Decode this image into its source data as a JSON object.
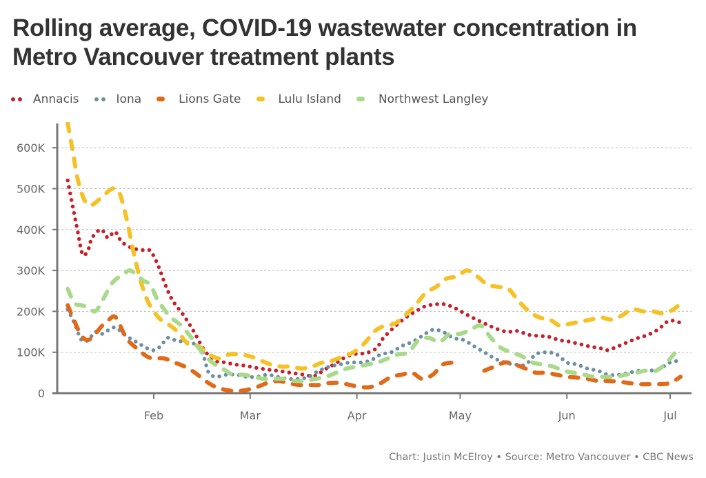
{
  "title": "Rolling average, COVID-19 wastewater concentration in Metro Vancouver treatment plants",
  "footer": "Chart: Justin McElroy • Source: Metro Vancouver • CBC News",
  "chart_data": {
    "type": "line",
    "title": "Rolling average, COVID-19 wastewater concentration in Metro Vancouver treatment plants",
    "xlabel": "",
    "ylabel": "",
    "x_unit": "day of year",
    "xlim": [
      4,
      188
    ],
    "ylim": [
      0,
      660000
    ],
    "grid": true,
    "legend_position": "top-left",
    "x_ticks": [
      {
        "label": "Feb",
        "day": 32
      },
      {
        "label": "Mar",
        "day": 60
      },
      {
        "label": "Apr",
        "day": 91
      },
      {
        "label": "May",
        "day": 121
      },
      {
        "label": "Jun",
        "day": 152
      },
      {
        "label": "Jul",
        "day": 182
      }
    ],
    "y_ticks": [
      {
        "label": "0",
        "value": 0
      },
      {
        "label": "100K",
        "value": 100000
      },
      {
        "label": "200K",
        "value": 200000
      },
      {
        "label": "300K",
        "value": 300000
      },
      {
        "label": "400K",
        "value": 400000
      },
      {
        "label": "500K",
        "value": 500000
      },
      {
        "label": "600K",
        "value": 600000
      }
    ],
    "series": [
      {
        "name": "Annacis",
        "color": "#c8202a",
        "style": "dotted",
        "x": [
          7,
          8.5,
          9.7,
          11.3,
          12.9,
          14.1,
          16.7,
          18.7,
          20.7,
          22.7,
          25.7,
          28.7,
          30.7,
          32,
          33.6,
          35.6,
          37.6,
          40.7,
          43.7,
          46.7,
          49.7,
          52.7,
          55.7,
          58.7,
          61.7,
          64.7,
          67.7,
          71.7,
          75.7,
          78.7,
          81.7,
          84.7,
          87.7,
          90.7,
          93.7,
          96.7,
          98.7,
          101.7,
          104.7,
          107.7,
          110.7,
          113.7,
          116.7,
          119.7,
          122.7,
          125.7,
          128.7,
          131.7,
          134.7,
          137.7,
          140.7,
          143.7,
          146.7,
          149.7,
          152.7,
          155.7,
          158.7,
          161.7,
          163.7,
          166.7,
          169.7,
          172.7,
          175.7,
          178.7,
          181.7,
          184.7
        ],
        "values": [
          520000,
          455000,
          405000,
          340000,
          350000,
          380000,
          400000,
          380000,
          395000,
          370000,
          355000,
          350000,
          350000,
          335000,
          305000,
          260000,
          225000,
          190000,
          150000,
          105000,
          80000,
          75000,
          70000,
          67000,
          62000,
          58000,
          55000,
          50000,
          45000,
          42000,
          58000,
          72000,
          88000,
          96000,
          98000,
          110000,
          135000,
          160000,
          182000,
          198000,
          212000,
          217000,
          217000,
          207000,
          193000,
          180000,
          168000,
          157000,
          150000,
          152000,
          143000,
          140000,
          138000,
          130000,
          126000,
          120000,
          114000,
          110000,
          105000,
          114000,
          125000,
          135000,
          143000,
          157000,
          177000,
          173000
        ]
      },
      {
        "name": "Iona",
        "color": "#6d8fa5",
        "style": "dotted",
        "x": [
          7,
          9,
          11,
          13,
          15,
          17,
          19,
          21,
          24,
          27,
          30,
          32,
          34,
          36,
          38,
          41,
          44,
          46,
          47,
          48,
          50,
          53,
          56,
          59,
          62,
          65,
          68,
          71,
          74,
          77,
          80,
          83,
          86,
          89,
          92,
          95,
          98,
          101,
          104,
          107,
          110,
          113,
          116,
          119,
          122,
          125,
          128,
          131,
          134,
          137,
          140,
          143,
          146,
          149,
          152,
          155,
          158,
          161,
          164,
          167,
          170,
          173,
          176,
          179,
          182,
          185
        ],
        "values": [
          205000,
          170000,
          130000,
          130000,
          150000,
          145000,
          155000,
          160000,
          140000,
          125000,
          110000,
          105000,
          115000,
          135000,
          130000,
          125000,
          120000,
          105000,
          75000,
          50000,
          40000,
          45000,
          45000,
          40000,
          40000,
          45000,
          40000,
          35000,
          35000,
          40000,
          55000,
          65000,
          70000,
          75000,
          75000,
          80000,
          95000,
          100000,
          115000,
          125000,
          140000,
          155000,
          150000,
          135000,
          130000,
          115000,
          100000,
          85000,
          75000,
          70000,
          70000,
          95000,
          100000,
          95000,
          75000,
          70000,
          60000,
          55000,
          45000,
          45000,
          50000,
          55000,
          55000,
          60000,
          75000,
          80000
        ]
      },
      {
        "name": "Lions Gate",
        "color": "#e06a1a",
        "style": "dashed",
        "x": [
          7,
          9,
          11,
          13,
          15,
          17,
          19,
          21,
          24,
          27,
          30,
          32,
          35,
          38,
          41,
          44,
          47,
          50,
          53,
          56,
          59,
          62,
          65,
          68,
          71,
          74,
          77,
          80,
          83,
          86,
          89,
          92,
          95,
          98,
          101,
          104,
          107,
          110,
          113,
          116,
          119,
          null,
          128,
          131,
          134,
          137,
          140,
          143,
          146,
          149,
          152,
          155,
          158,
          161,
          164,
          167,
          170,
          173,
          176,
          179,
          182,
          185
        ],
        "values": [
          215000,
          175000,
          140000,
          130000,
          145000,
          165000,
          180000,
          185000,
          135000,
          110000,
          90000,
          85000,
          85000,
          75000,
          65000,
          50000,
          30000,
          15000,
          8000,
          5000,
          8000,
          15000,
          25000,
          30000,
          25000,
          20000,
          20000,
          20000,
          25000,
          25000,
          20000,
          15000,
          15000,
          25000,
          40000,
          45000,
          50000,
          35000,
          45000,
          70000,
          75000,
          null,
          55000,
          65000,
          75000,
          70000,
          60000,
          50000,
          50000,
          45000,
          40000,
          38000,
          35000,
          30000,
          30000,
          28000,
          25000,
          22000,
          22000,
          22000,
          25000,
          40000
        ]
      },
      {
        "name": "Lulu Island",
        "color": "#f5c125",
        "style": "dashed",
        "x": [
          7,
          8.5,
          10,
          12,
          14,
          17,
          20,
          22,
          24,
          26,
          28,
          30,
          32,
          34,
          36,
          39,
          42,
          45,
          48,
          51,
          54,
          57,
          60,
          63,
          66,
          69,
          72,
          75,
          78,
          81,
          84,
          87,
          90,
          93,
          96,
          99,
          102,
          105,
          108,
          111,
          114,
          117,
          120,
          123,
          126,
          129,
          132,
          135,
          138,
          141,
          144,
          147,
          150,
          153,
          156,
          159,
          162,
          165,
          168,
          171,
          174,
          177,
          180,
          183,
          185
        ],
        "values": [
          660000,
          590000,
          520000,
          470000,
          460000,
          480000,
          500000,
          490000,
          430000,
          350000,
          280000,
          230000,
          200000,
          180000,
          170000,
          150000,
          120000,
          115000,
          95000,
          85000,
          95000,
          95000,
          90000,
          80000,
          70000,
          65000,
          65000,
          60000,
          65000,
          75000,
          80000,
          90000,
          100000,
          120000,
          150000,
          165000,
          170000,
          190000,
          215000,
          245000,
          260000,
          280000,
          285000,
          300000,
          285000,
          265000,
          260000,
          255000,
          225000,
          200000,
          185000,
          180000,
          165000,
          170000,
          175000,
          180000,
          185000,
          180000,
          190000,
          205000,
          200000,
          200000,
          195000,
          205000,
          220000
        ]
      },
      {
        "name": "Northwest Langley",
        "color": "#a9d98a",
        "style": "dashed",
        "x": [
          7,
          9,
          11,
          13,
          15,
          17,
          20,
          23,
          25,
          27,
          29,
          31,
          33,
          35,
          37,
          40,
          43,
          46,
          49,
          52,
          55,
          58,
          61,
          64,
          67,
          70,
          73,
          76,
          79,
          82,
          85,
          88,
          91,
          94,
          97,
          100,
          103,
          106,
          109,
          112,
          115,
          118,
          121,
          124,
          127,
          130,
          133,
          136,
          139,
          142,
          145,
          148,
          151,
          154,
          157,
          160,
          163,
          166,
          169,
          172,
          175,
          178,
          181,
          184
        ],
        "values": [
          255000,
          220000,
          215000,
          210000,
          200000,
          225000,
          270000,
          290000,
          300000,
          290000,
          275000,
          265000,
          230000,
          205000,
          185000,
          165000,
          135000,
          100000,
          75000,
          60000,
          45000,
          45000,
          40000,
          35000,
          35000,
          35000,
          30000,
          30000,
          35000,
          40000,
          50000,
          60000,
          65000,
          70000,
          75000,
          85000,
          95000,
          100000,
          130000,
          135000,
          125000,
          145000,
          145000,
          155000,
          165000,
          135000,
          110000,
          100000,
          90000,
          75000,
          70000,
          65000,
          55000,
          50000,
          45000,
          40000,
          40000,
          40000,
          45000,
          50000,
          55000,
          55000,
          75000,
          105000
        ]
      }
    ]
  }
}
